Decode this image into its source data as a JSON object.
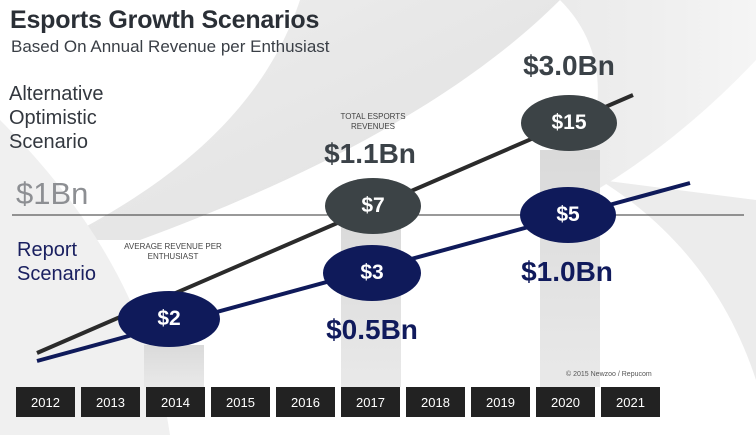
{
  "header": {
    "title": "Esports Growth Scenarios",
    "subtitle": "Based On Annual Revenue per Enthusiast"
  },
  "labels": {
    "alternative": "Alternative Optimistic Scenario",
    "threshold": "$1Bn",
    "report": "Report Scenario",
    "avg_note": "AVERAGE REVENUE PER ENTHUSIAST",
    "total_note": "TOTAL ESPORTS REVENUES",
    "copyright": "© 2015 Newzoo / Repucom"
  },
  "colors": {
    "optimistic": "#2b2b2b",
    "report": "#0f1a5a",
    "bubble_dark": "#3c4346",
    "bubble_navy": "#0f1a5a",
    "year_box": "#222222"
  },
  "chart_data": {
    "type": "line",
    "title": "Esports Growth Scenarios",
    "subtitle": "Based On Annual Revenue per Enthusiast",
    "x": [
      "2012",
      "2013",
      "2014",
      "2015",
      "2016",
      "2017",
      "2018",
      "2019",
      "2020",
      "2021"
    ],
    "series": [
      {
        "name": "Alternative Optimistic Scenario",
        "points": [
          {
            "year": "2017",
            "revenue_per_enthusiast": "$7",
            "total_revenue": "$1.1Bn"
          },
          {
            "year": "2020",
            "revenue_per_enthusiast": "$15",
            "total_revenue": "$3.0Bn"
          }
        ]
      },
      {
        "name": "Report Scenario",
        "points": [
          {
            "year": "2014",
            "revenue_per_enthusiast": "$2"
          },
          {
            "year": "2017",
            "revenue_per_enthusiast": "$3",
            "total_revenue": "$0.5Bn"
          },
          {
            "year": "2020",
            "revenue_per_enthusiast": "$5",
            "total_revenue": "$1.0Bn"
          }
        ]
      }
    ],
    "reference_line": "$1Bn"
  }
}
